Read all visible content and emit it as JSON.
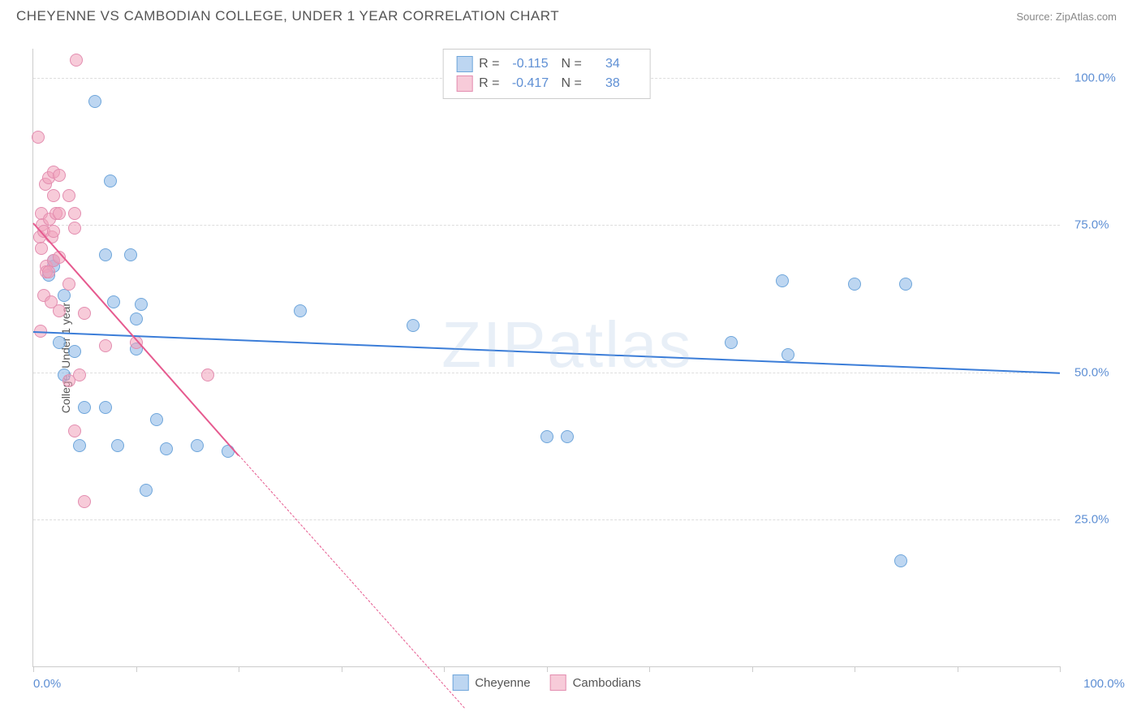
{
  "header": {
    "title": "CHEYENNE VS CAMBODIAN COLLEGE, UNDER 1 YEAR CORRELATION CHART",
    "source": "Source: ZipAtlas.com"
  },
  "watermark": "ZIPatlas",
  "chart": {
    "type": "scatter",
    "y_axis_title": "College, Under 1 year",
    "xlim": [
      0,
      100
    ],
    "ylim": [
      0,
      105
    ],
    "x_min_label": "0.0%",
    "x_max_label": "100.0%",
    "x_ticks": [
      0,
      10,
      20,
      30,
      40,
      50,
      60,
      70,
      80,
      90,
      100
    ],
    "y_gridlines": [
      {
        "value": 25,
        "label": "25.0%"
      },
      {
        "value": 50,
        "label": "50.0%"
      },
      {
        "value": 75,
        "label": "75.0%"
      },
      {
        "value": 100,
        "label": "100.0%"
      }
    ],
    "series": [
      {
        "name": "Cheyenne",
        "color_fill": "rgba(135, 180, 230, 0.55)",
        "color_stroke": "#6fa6db",
        "marker_radius": 8,
        "trend": {
          "x1": 0,
          "y1": 57,
          "x2": 100,
          "y2": 50,
          "color": "#3b7dd8",
          "dashed_from_x": null
        },
        "points": [
          [
            1.5,
            66.5
          ],
          [
            2,
            68
          ],
          [
            2,
            69
          ],
          [
            2.5,
            55
          ],
          [
            3,
            49.5
          ],
          [
            3,
            63
          ],
          [
            4,
            53.5
          ],
          [
            4.5,
            37.5
          ],
          [
            5,
            44
          ],
          [
            6,
            96
          ],
          [
            7,
            44
          ],
          [
            7,
            70
          ],
          [
            7.5,
            82.5
          ],
          [
            7.8,
            62
          ],
          [
            8.2,
            37.5
          ],
          [
            9.5,
            70
          ],
          [
            10,
            59
          ],
          [
            10,
            54
          ],
          [
            10.5,
            61.5
          ],
          [
            11,
            30
          ],
          [
            12,
            42
          ],
          [
            13,
            37
          ],
          [
            16,
            37.5
          ],
          [
            19,
            36.5
          ],
          [
            26,
            60.5
          ],
          [
            37,
            58
          ],
          [
            50,
            39
          ],
          [
            52,
            39
          ],
          [
            68,
            55
          ],
          [
            73,
            65.5
          ],
          [
            73.5,
            53
          ],
          [
            80,
            65
          ],
          [
            85,
            65
          ],
          [
            84.5,
            18
          ]
        ]
      },
      {
        "name": "Cambodians",
        "color_fill": "rgba(240, 160, 185, 0.55)",
        "color_stroke": "#e38eb0",
        "marker_radius": 8,
        "trend": {
          "x1": 0,
          "y1": 75.5,
          "x2": 20,
          "y2": 36,
          "color": "#e65a8f",
          "dashed_from_x": 20,
          "dashed_to_x": 42,
          "dashed_to_y": -7
        },
        "points": [
          [
            0.5,
            90
          ],
          [
            0.6,
            73
          ],
          [
            0.7,
            57
          ],
          [
            0.8,
            71
          ],
          [
            0.8,
            77
          ],
          [
            0.9,
            75
          ],
          [
            1,
            74
          ],
          [
            1,
            63
          ],
          [
            1.2,
            82
          ],
          [
            1.3,
            68
          ],
          [
            1.3,
            67
          ],
          [
            1.5,
            83
          ],
          [
            1.5,
            67
          ],
          [
            1.6,
            76
          ],
          [
            1.7,
            62
          ],
          [
            1.8,
            73
          ],
          [
            2,
            84
          ],
          [
            2,
            80
          ],
          [
            2,
            74
          ],
          [
            2,
            69
          ],
          [
            2.2,
            77
          ],
          [
            2.5,
            83.5
          ],
          [
            2.5,
            77
          ],
          [
            2.5,
            69.5
          ],
          [
            2.5,
            60.5
          ],
          [
            3.5,
            80
          ],
          [
            3.5,
            65
          ],
          [
            3.5,
            48.5
          ],
          [
            4,
            74.5
          ],
          [
            4,
            40
          ],
          [
            4,
            77
          ],
          [
            4.2,
            103
          ],
          [
            4.5,
            49.5
          ],
          [
            5,
            60
          ],
          [
            5,
            28
          ],
          [
            7,
            54.5
          ],
          [
            10,
            55
          ],
          [
            17,
            49.5
          ]
        ]
      }
    ],
    "legend_stats": [
      {
        "swatch_fill": "rgba(135,180,230,0.55)",
        "swatch_stroke": "#6fa6db",
        "r_label": "R =",
        "r_val": "-0.115",
        "n_label": "N =",
        "n_val": "34"
      },
      {
        "swatch_fill": "rgba(240,160,185,0.55)",
        "swatch_stroke": "#e38eb0",
        "r_label": "R =",
        "r_val": "-0.417",
        "n_label": "N =",
        "n_val": "38"
      }
    ],
    "legend_bottom": [
      {
        "swatch_fill": "rgba(135,180,230,0.55)",
        "swatch_stroke": "#6fa6db",
        "label": "Cheyenne"
      },
      {
        "swatch_fill": "rgba(240,160,185,0.55)",
        "swatch_stroke": "#e38eb0",
        "label": "Cambodians"
      }
    ]
  }
}
